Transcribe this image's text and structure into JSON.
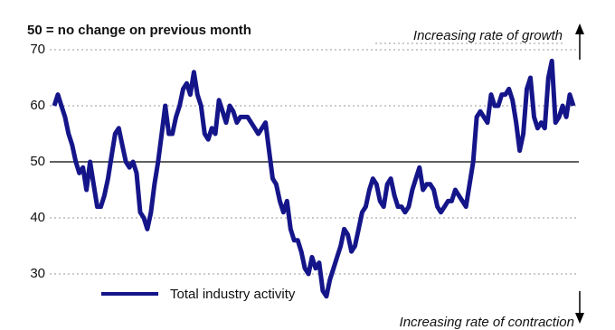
{
  "chart_data": {
    "type": "line",
    "subtitle": "50 = no change on previous month",
    "annotations": [
      "Increasing rate of growth",
      "Increasing rate of contraction"
    ],
    "ylim": [
      20,
      70
    ],
    "yticks": [
      30,
      40,
      50,
      60,
      70
    ],
    "grid": true,
    "hline": 50,
    "series": [
      {
        "name": "Total industry activity",
        "color": "#15158a",
        "values": [
          60,
          62,
          60,
          58,
          55,
          53,
          50,
          48,
          49,
          45,
          50,
          46,
          42,
          42,
          44,
          47,
          51,
          55,
          56,
          53,
          50,
          49,
          50,
          48,
          41,
          40,
          38,
          41,
          46,
          50,
          55,
          60,
          55,
          55,
          58,
          60,
          63,
          64,
          62,
          66,
          62,
          60,
          55,
          54,
          56,
          55,
          61,
          59,
          57,
          60,
          59,
          57,
          58,
          58,
          58,
          57,
          56,
          55,
          56,
          57,
          52,
          47,
          46,
          43,
          41,
          43,
          38,
          36,
          36,
          34,
          31,
          30,
          33,
          31,
          32,
          27,
          26,
          29,
          31,
          33,
          35,
          38,
          37,
          34,
          35,
          38,
          41,
          42,
          45,
          47,
          46,
          43,
          42,
          46,
          47,
          44,
          42,
          42,
          41,
          42,
          45,
          47,
          49,
          45,
          46,
          46,
          45,
          42,
          41,
          42,
          43,
          43,
          45,
          44,
          43,
          42,
          46,
          50,
          58,
          59,
          58,
          57,
          62,
          60,
          60,
          62,
          62,
          63,
          61,
          57,
          52,
          55,
          63,
          65,
          58,
          56,
          57,
          56,
          65,
          68,
          57,
          58,
          60,
          58,
          62,
          60
        ]
      }
    ]
  }
}
